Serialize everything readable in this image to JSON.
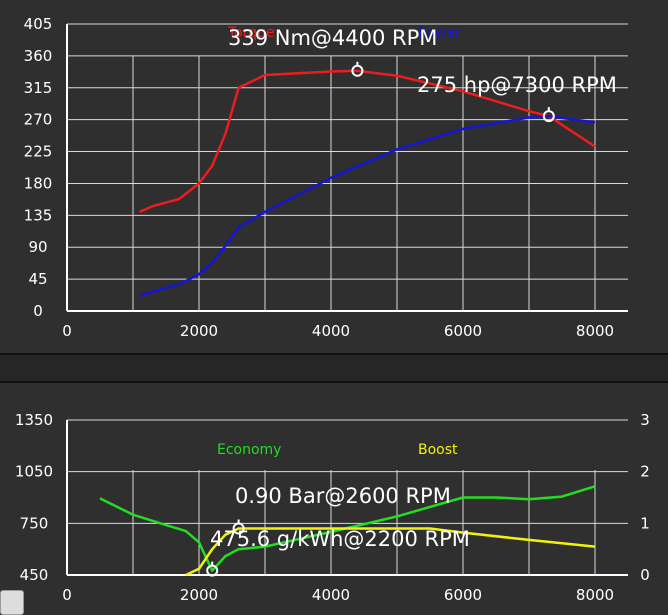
{
  "chart_data": [
    {
      "type": "line",
      "xlim": [
        0,
        8500
      ],
      "ylim": [
        0,
        405
      ],
      "x_ticks": [
        "0",
        "2000",
        "4000",
        "6000",
        "8000"
      ],
      "y_ticks": [
        "0",
        "45",
        "90",
        "135",
        "180",
        "225",
        "270",
        "315",
        "360",
        "405"
      ],
      "grid": true,
      "legend": [
        "Torque",
        "Power"
      ],
      "series": [
        {
          "name": "Torque",
          "color": "#ee1c1c",
          "points": [
            [
              1100,
              140
            ],
            [
              1300,
              148
            ],
            [
              1700,
              158
            ],
            [
              2000,
              180
            ],
            [
              2200,
              205
            ],
            [
              2400,
              250
            ],
            [
              2600,
              315
            ],
            [
              3000,
              333
            ],
            [
              4000,
              338
            ],
            [
              4400,
              339
            ],
            [
              5000,
              332
            ],
            [
              6000,
              310
            ],
            [
              7000,
              282
            ],
            [
              7300,
              275
            ],
            [
              8000,
              232
            ]
          ]
        },
        {
          "name": "Power",
          "color": "#1515d8",
          "points": [
            [
              1100,
              22
            ],
            [
              1700,
              38
            ],
            [
              2000,
              52
            ],
            [
              2200,
              68
            ],
            [
              2400,
              92
            ],
            [
              2600,
              118
            ],
            [
              3000,
              140
            ],
            [
              4000,
              188
            ],
            [
              5000,
              228
            ],
            [
              6000,
              257
            ],
            [
              7000,
              273
            ],
            [
              7300,
              275
            ],
            [
              8000,
              266
            ]
          ]
        }
      ],
      "annotations": [
        {
          "text": "339 Nm@4400 RPM",
          "x": 4400,
          "y": 339
        },
        {
          "text": "275 hp@7300 RPM",
          "x": 7300,
          "y": 275
        }
      ]
    },
    {
      "type": "line",
      "xlim": [
        0,
        8500
      ],
      "ylim_left": [
        450,
        1350
      ],
      "ylim_right": [
        0,
        3
      ],
      "x_ticks": [
        "0",
        "2000",
        "4000",
        "6000",
        "8000"
      ],
      "y_ticks_left": [
        "450",
        "750",
        "1050",
        "1350"
      ],
      "y_ticks_right": [
        "0",
        "1",
        "2",
        "3"
      ],
      "grid": true,
      "legend": [
        "Economy",
        "Boost"
      ],
      "series": [
        {
          "name": "Economy",
          "color": "#22dd22",
          "axis": "left",
          "points": [
            [
              500,
              895
            ],
            [
              1000,
              800
            ],
            [
              1500,
              740
            ],
            [
              1800,
              705
            ],
            [
              2000,
              640
            ],
            [
              2200,
              475.6
            ],
            [
              2400,
              560
            ],
            [
              2600,
              600
            ],
            [
              3000,
              615
            ],
            [
              4000,
              700
            ],
            [
              5000,
              790
            ],
            [
              6000,
              900
            ],
            [
              6500,
              900
            ],
            [
              7000,
              890
            ],
            [
              7500,
              905
            ],
            [
              8000,
              965
            ]
          ]
        },
        {
          "name": "Boost",
          "color": "#f2f20c",
          "axis": "right",
          "points": [
            [
              1800,
              0
            ],
            [
              2000,
              0.12
            ],
            [
              2200,
              0.5
            ],
            [
              2400,
              0.78
            ],
            [
              2600,
              0.9
            ],
            [
              3000,
              0.9
            ],
            [
              4000,
              0.9
            ],
            [
              5000,
              0.9
            ],
            [
              5500,
              0.9
            ],
            [
              6000,
              0.82
            ],
            [
              7000,
              0.68
            ],
            [
              8000,
              0.55
            ]
          ]
        }
      ],
      "annotations": [
        {
          "text": "0.90 Bar@2600 RPM",
          "x": 2600,
          "y": 0.9,
          "axis": "right"
        },
        {
          "text": "475.6 g/kWh@2200 RPM",
          "x": 2200,
          "y": 475.6,
          "axis": "left"
        }
      ]
    }
  ]
}
